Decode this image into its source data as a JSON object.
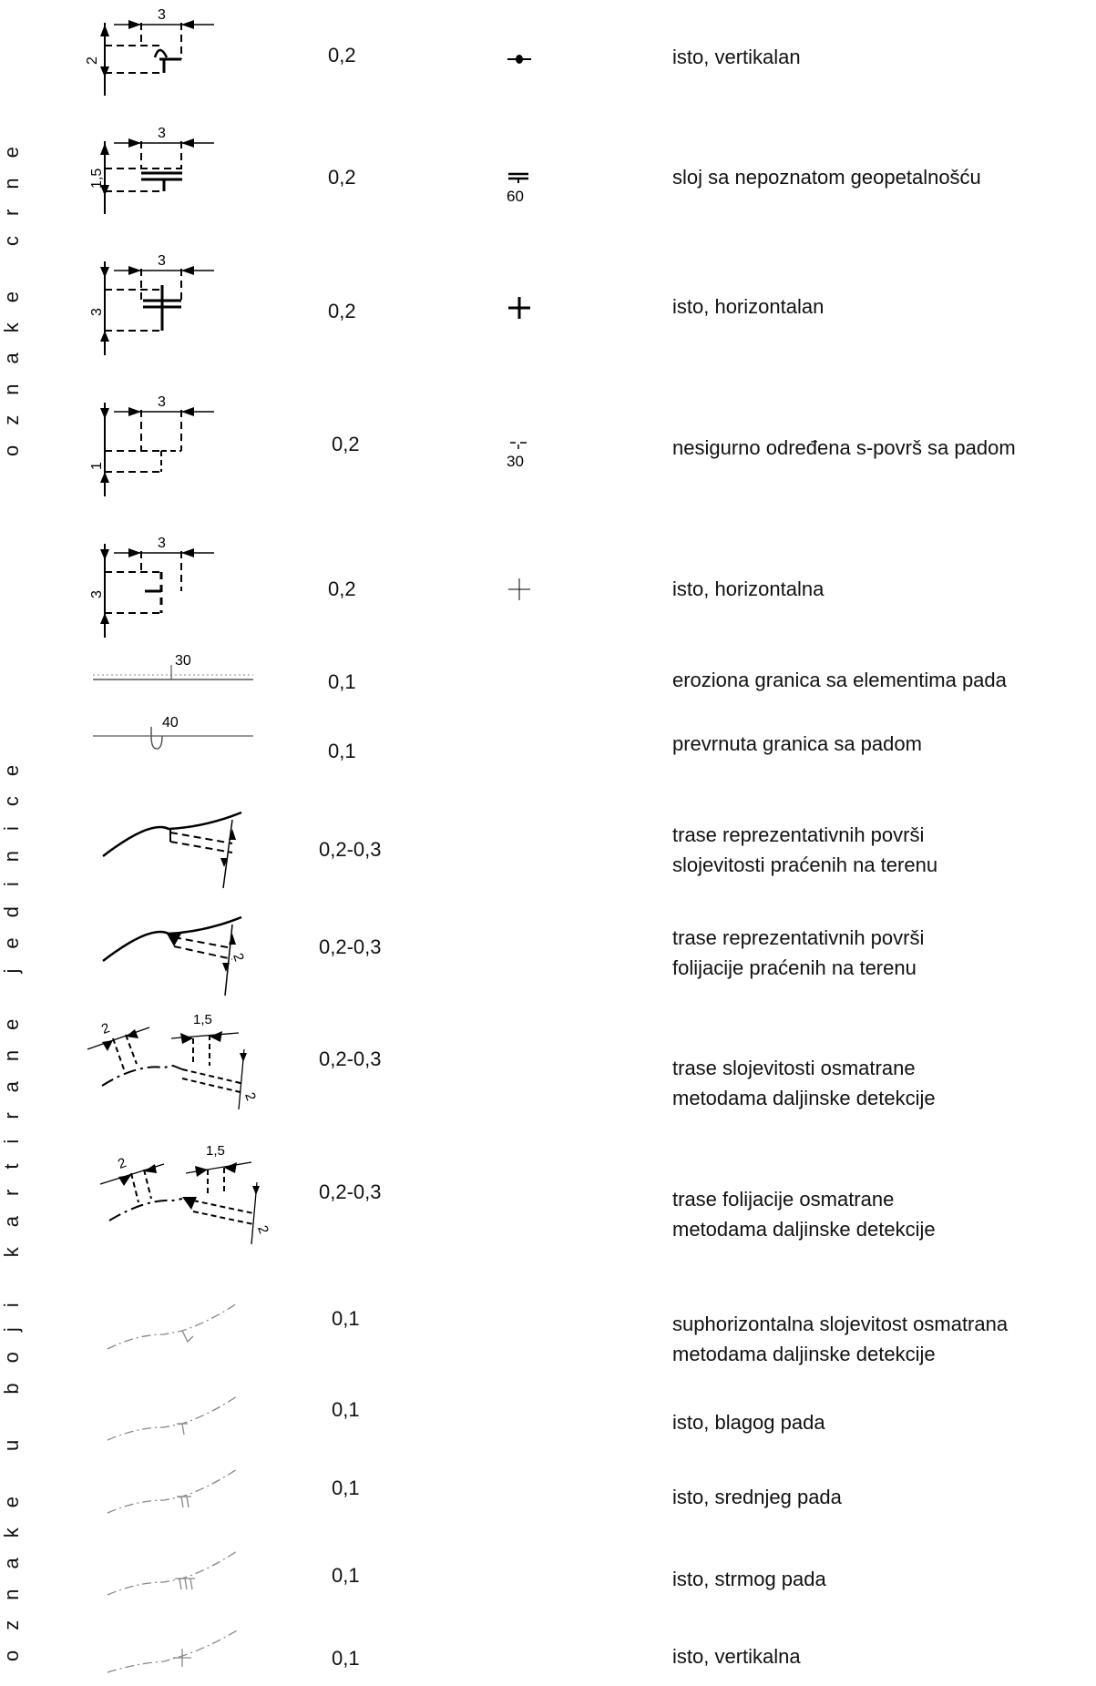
{
  "side_labels": {
    "top": "oznake crne",
    "bottom": "oznake u boji kartirane jedinice"
  },
  "rows": [
    {
      "value": "0,2",
      "desc1": "isto, vertikalan",
      "desc2": "",
      "dim_a": "3",
      "dim_b": "2"
    },
    {
      "value": "0,2",
      "desc1": "sloj sa nepoznatom geopetalnošću",
      "desc2": "",
      "dim_a": "3",
      "dim_b": "1,5",
      "sample_num": "60"
    },
    {
      "value": "0,2",
      "desc1": "isto, horizontalan",
      "desc2": "",
      "dim_a": "3",
      "dim_b": "3"
    },
    {
      "value": "0,2",
      "desc1": "nesigurno određena s-površ sa padom",
      "desc2": "",
      "dim_a": "3",
      "dim_b": "1",
      "sample_num": "30"
    },
    {
      "value": "0,2",
      "desc1": "isto, horizontalna",
      "desc2": "",
      "dim_a": "3",
      "dim_b": "3"
    },
    {
      "value": "0,1",
      "desc1": "eroziona granica sa elementima pada",
      "desc2": "",
      "sym_num": "30"
    },
    {
      "value": "0,1",
      "desc1": "prevrnuta granica sa padom",
      "desc2": "",
      "sym_num": "40"
    },
    {
      "value": "0,2-0,3",
      "desc1": "trase reprezentativnih površi",
      "desc2": "slojevitosti praćenih na terenu"
    },
    {
      "value": "0,2-0,3",
      "desc1": "trase reprezentativnih površi",
      "desc2": "folijacije praćenih na terenu",
      "dim_b": "2"
    },
    {
      "value": "0,2-0,3",
      "desc1": "trase slojevitosti  osmatrane",
      "desc2": "metodama daljinske detekcije",
      "dim_a": "2",
      "dim_c": "1,5",
      "dim_b": "2"
    },
    {
      "value": "0,2-0,3",
      "desc1": "trase folijacije osmatrane",
      "desc2": "metodama daljinske detekcije",
      "dim_a": "2",
      "dim_c": "1,5",
      "dim_b": "2"
    },
    {
      "value": "0,1",
      "desc1": "suphorizontalna slojevitost osmatrana",
      "desc2": "metodama daljinske detekcije"
    },
    {
      "value": "0,1",
      "desc1": "isto, blagog pada",
      "desc2": ""
    },
    {
      "value": "0,1",
      "desc1": "isto, srednjeg pada",
      "desc2": ""
    },
    {
      "value": "0,1",
      "desc1": "isto, strmog pada",
      "desc2": ""
    },
    {
      "value": "0,1",
      "desc1": "isto, vertikalna",
      "desc2": ""
    }
  ]
}
